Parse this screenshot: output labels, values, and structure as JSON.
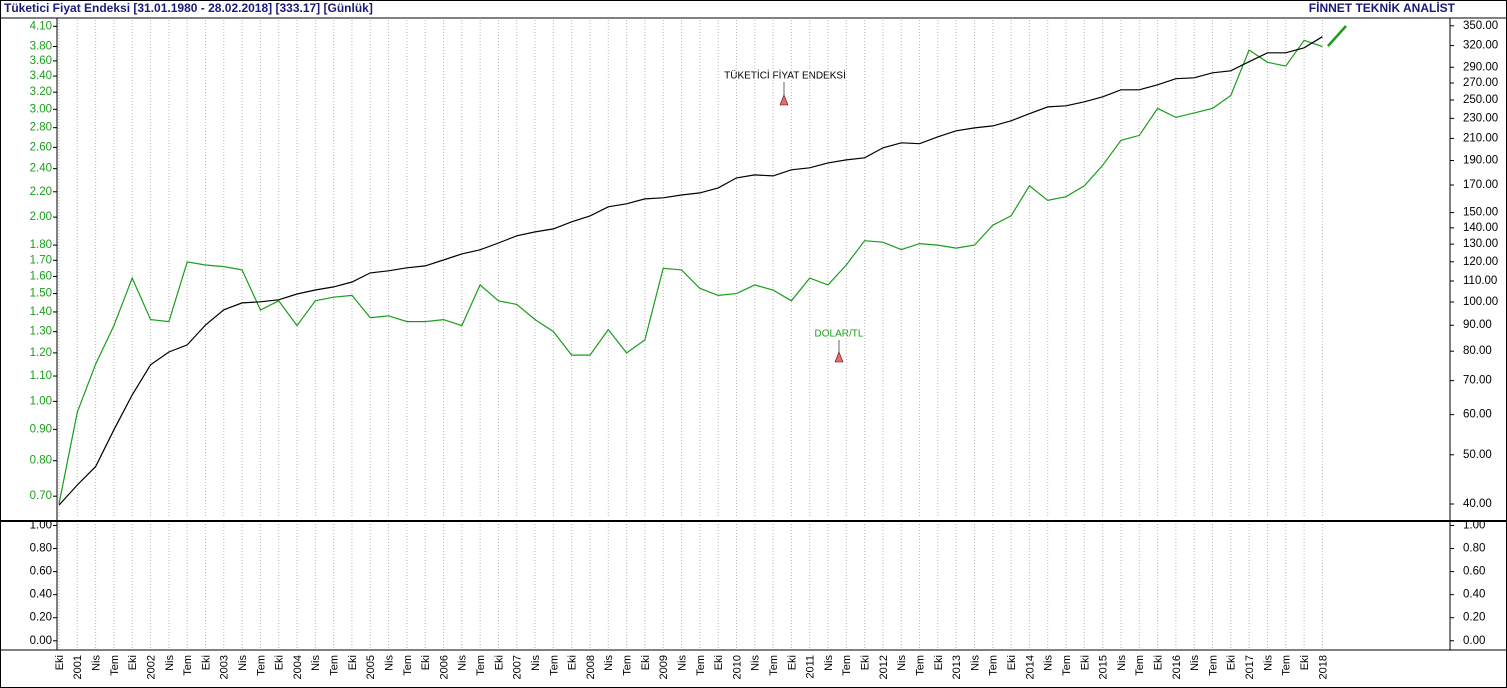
{
  "chart_data": [
    {
      "type": "line",
      "title": "Tüketici Fiyat Endeksi  [31.01.1980 - 28.02.2018]  [333.17]  [Günlük]",
      "brand": "FİNNET TEKNİK ANALİST",
      "log_scale": true,
      "grid": true,
      "categories": [
        "Eki",
        "2001",
        "Nis",
        "Tem",
        "Eki",
        "2002",
        "Nis",
        "Tem",
        "Eki",
        "2003",
        "Nis",
        "Tem",
        "Eki",
        "2004",
        "Nis",
        "Tem",
        "Eki",
        "2005",
        "Nis",
        "Tem",
        "Eki",
        "2006",
        "Nis",
        "Tem",
        "Eki",
        "2007",
        "Nis",
        "Tem",
        "Eki",
        "2008",
        "Nis",
        "Tem",
        "Eki",
        "2009",
        "Nis",
        "Tem",
        "Eki",
        "2010",
        "Nis",
        "Tem",
        "Eki",
        "2011",
        "Nis",
        "Tem",
        "Eki",
        "2012",
        "Nis",
        "Tem",
        "Eki",
        "2013",
        "Nis",
        "Tem",
        "Eki",
        "2014",
        "Nis",
        "Tem",
        "Eki",
        "2015",
        "Nis",
        "Tem",
        "Eki",
        "2016",
        "Nis",
        "Tem",
        "Eki",
        "2017",
        "Nis",
        "Tem",
        "Eki",
        "2018"
      ],
      "series": [
        {
          "name": "DOLAR/TL",
          "color": "#1a9e1a",
          "axis": "y",
          "values": [
            0.68,
            0.96,
            1.15,
            1.33,
            1.59,
            1.36,
            1.35,
            1.69,
            1.67,
            1.66,
            1.64,
            1.41,
            1.46,
            1.33,
            1.46,
            1.48,
            1.49,
            1.37,
            1.38,
            1.35,
            1.35,
            1.36,
            1.33,
            1.55,
            1.46,
            1.44,
            1.36,
            1.3,
            1.19,
            1.19,
            1.31,
            1.2,
            1.26,
            1.65,
            1.64,
            1.53,
            1.49,
            1.5,
            1.55,
            1.52,
            1.46,
            1.59,
            1.55,
            1.67,
            1.83,
            1.82,
            1.77,
            1.81,
            1.8,
            1.78,
            1.8,
            1.94,
            2.01,
            2.25,
            2.13,
            2.16,
            2.25,
            2.43,
            2.67,
            2.72,
            3.01,
            2.91,
            2.96,
            3.01,
            3.16,
            3.75,
            3.58,
            3.53,
            3.89,
            3.8
          ]
        },
        {
          "name": "TÜKETİCİ FİYAT ENDEKSİ",
          "color": "#000000",
          "axis": "y2",
          "values": [
            39.8,
            43.6,
            47.4,
            56.0,
            65.6,
            75.2,
            79.7,
            82.3,
            90.1,
            96.5,
            99.6,
            100.1,
            101.0,
            103.7,
            105.6,
            107.1,
            109.5,
            114.1,
            115.2,
            116.8,
            117.8,
            121.0,
            124.4,
            126.7,
            130.7,
            135.0,
            137.4,
            139.3,
            143.9,
            147.8,
            154.0,
            156.1,
            159.6,
            160.4,
            162.5,
            164.0,
            167.8,
            175.6,
            178.0,
            177.2,
            182.1,
            183.8,
            187.9,
            190.5,
            192.3,
            201.2,
            205.9,
            205.0,
            211.5,
            217.4,
            220.3,
            222.3,
            227.5,
            234.9,
            242.3,
            243.5,
            247.9,
            253.6,
            261.8,
            261.8,
            267.8,
            275.3,
            276.4,
            282.8,
            285.4,
            297.4,
            309.6,
            309.6,
            316.7,
            333.17
          ]
        }
      ],
      "ylim": [
        0.64,
        4.23
      ],
      "yticks": [
        {
          "value": 0.7,
          "label": "0.70"
        },
        {
          "value": 0.8,
          "label": "0.80"
        },
        {
          "value": 0.9,
          "label": "0.90"
        },
        {
          "value": 1.0,
          "label": "1.00"
        },
        {
          "value": 1.1,
          "label": "1.10"
        },
        {
          "value": 1.2,
          "label": "1.20"
        },
        {
          "value": 1.3,
          "label": "1.30"
        },
        {
          "value": 1.4,
          "label": "1.40"
        },
        {
          "value": 1.5,
          "label": "1.50"
        },
        {
          "value": 1.6,
          "label": "1.60"
        },
        {
          "value": 1.7,
          "label": "1.70"
        },
        {
          "value": 1.8,
          "label": "1.80"
        },
        {
          "value": 2.0,
          "label": "2.00"
        },
        {
          "value": 2.2,
          "label": "2.20"
        },
        {
          "value": 2.4,
          "label": "2.40"
        },
        {
          "value": 2.6,
          "label": "2.60"
        },
        {
          "value": 2.8,
          "label": "2.80"
        },
        {
          "value": 3.0,
          "label": "3.00"
        },
        {
          "value": 3.2,
          "label": "3.20"
        },
        {
          "value": 3.4,
          "label": "3.40"
        },
        {
          "value": 3.6,
          "label": "3.60"
        },
        {
          "value": 3.8,
          "label": "3.80"
        },
        {
          "value": 4.1,
          "label": "4.10"
        }
      ],
      "y2lim": [
        37.2,
        362.6
      ],
      "y2ticks": [
        {
          "value": 40,
          "label": "40.00"
        },
        {
          "value": 50,
          "label": "50.00"
        },
        {
          "value": 60,
          "label": "60.00"
        },
        {
          "value": 70,
          "label": "70.00"
        },
        {
          "value": 80,
          "label": "80.00"
        },
        {
          "value": 90,
          "label": "90.00"
        },
        {
          "value": 100,
          "label": "100.00"
        },
        {
          "value": 110,
          "label": "110.00"
        },
        {
          "value": 120,
          "label": "120.00"
        },
        {
          "value": 130,
          "label": "130.00"
        },
        {
          "value": 140,
          "label": "140.00"
        },
        {
          "value": 150,
          "label": "150.00"
        },
        {
          "value": 170,
          "label": "170.00"
        },
        {
          "value": 190,
          "label": "190.00"
        },
        {
          "value": 210,
          "label": "210.00"
        },
        {
          "value": 230,
          "label": "230.00"
        },
        {
          "value": 250,
          "label": "250.00"
        },
        {
          "value": 270,
          "label": "270.00"
        },
        {
          "value": 290,
          "label": "290.00"
        },
        {
          "value": 320,
          "label": "320.00"
        },
        {
          "value": 350,
          "label": "350.00"
        }
      ]
    },
    {
      "type": "line",
      "log_scale": false,
      "ylim": [
        -0.08,
        1.03
      ],
      "yticks": [
        {
          "value": 0,
          "label": "0.00"
        },
        {
          "value": 0.2,
          "label": "0.20"
        },
        {
          "value": 0.4,
          "label": "0.40"
        },
        {
          "value": 0.6,
          "label": "0.60"
        },
        {
          "value": 0.8,
          "label": "0.80"
        },
        {
          "value": 1,
          "label": "1.00"
        }
      ],
      "y2lim": [
        -0.08,
        1.03
      ],
      "y2ticks": [
        {
          "value": 0,
          "label": "0.00"
        },
        {
          "value": 0.2,
          "label": "0.20"
        },
        {
          "value": 0.4,
          "label": "0.40"
        },
        {
          "value": 0.6,
          "label": "0.60"
        },
        {
          "value": 0.8,
          "label": "0.80"
        },
        {
          "value": 1,
          "label": "1.00"
        }
      ]
    }
  ]
}
